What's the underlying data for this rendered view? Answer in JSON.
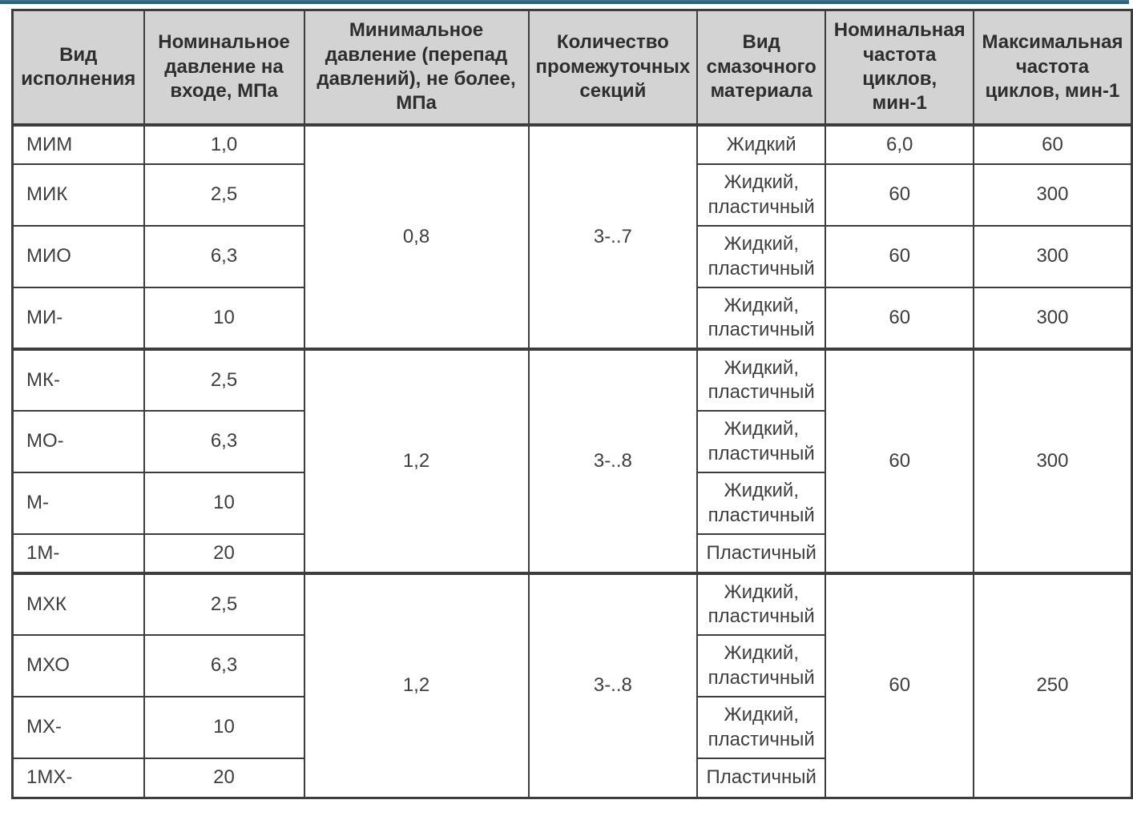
{
  "page": {
    "accent_bar_color": "#33617a",
    "background_color": "#ffffff"
  },
  "table": {
    "border_color": "#3d3d3d",
    "header_bg_color": "#d3d3d3",
    "headers": [
      "Вид\nисполнения",
      "Номинальное\nдавление на\nвходе, МПа",
      "Минимальное\nдавление (перепад\nдавлений), не более,\nМПа",
      "Количество\nпромежуточных\nсекций",
      "Вид\nсмазочного\nматериала",
      "Номинальная\nчастота\nциклов,\nмин-1",
      "Максимальная\nчастота\nциклов, мин-1"
    ],
    "groups": [
      {
        "min_pressure": "0,8",
        "sections": "3-..7",
        "rows": [
          {
            "type": "МИМ",
            "inlet_pressure": "1,0",
            "lubricant": "Жидкий",
            "nominal_freq": "6,0",
            "max_freq": "60"
          },
          {
            "type": "МИК",
            "inlet_pressure": "2,5",
            "lubricant": "Жидкий, пластичный",
            "nominal_freq": "60",
            "max_freq": "300"
          },
          {
            "type": "МИО",
            "inlet_pressure": "6,3",
            "lubricant": "Жидкий, пластичный",
            "nominal_freq": "60",
            "max_freq": "300"
          },
          {
            "type": "МИ-",
            "inlet_pressure": "10",
            "lubricant": "Жидкий, пластичный",
            "nominal_freq": "60",
            "max_freq": "300"
          }
        ]
      },
      {
        "min_pressure": "1,2",
        "sections": "3-..8",
        "nominal_freq": "60",
        "max_freq": "300",
        "rows": [
          {
            "type": "МК-",
            "inlet_pressure": "2,5",
            "lubricant": "Жидкий, пластичный"
          },
          {
            "type": "МО-",
            "inlet_pressure": "6,3",
            "lubricant": "Жидкий, пластичный"
          },
          {
            "type": "М-",
            "inlet_pressure": "10",
            "lubricant": "Жидкий, пластичный"
          },
          {
            "type": "1М-",
            "inlet_pressure": "20",
            "lubricant": "Пластичный"
          }
        ]
      },
      {
        "min_pressure": "1,2",
        "sections": "3-..8",
        "nominal_freq": "60",
        "max_freq": "250",
        "rows": [
          {
            "type": "МХК",
            "inlet_pressure": "2,5",
            "lubricant": "Жидкий, пластичный"
          },
          {
            "type": "МХО",
            "inlet_pressure": "6,3",
            "lubricant": "Жидкий, пластичный"
          },
          {
            "type": "МХ-",
            "inlet_pressure": "10",
            "lubricant": "Жидкий, пластичный"
          },
          {
            "type": "1МХ-",
            "inlet_pressure": "20",
            "lubricant": "Пластичный"
          }
        ]
      }
    ]
  }
}
